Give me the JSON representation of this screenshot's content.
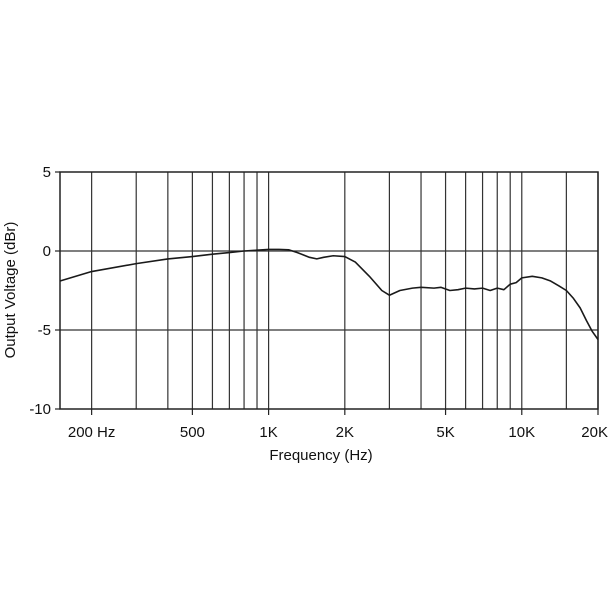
{
  "chart_data": {
    "type": "line",
    "xlabel": "Frequency (Hz)",
    "ylabel": "Output Voltage (dBr)",
    "x_scale": "log",
    "xlim": [
      150,
      20000
    ],
    "ylim": [
      -10,
      5
    ],
    "x_ticks": [
      {
        "value": 200,
        "label": "200 Hz"
      },
      {
        "value": 500,
        "label": "500"
      },
      {
        "value": 1000,
        "label": "1K"
      },
      {
        "value": 2000,
        "label": "2K"
      },
      {
        "value": 5000,
        "label": "5K"
      },
      {
        "value": 10000,
        "label": "10K"
      },
      {
        "value": 20000,
        "label": "20K"
      }
    ],
    "y_ticks": [
      {
        "value": 5,
        "label": "5"
      },
      {
        "value": 0,
        "label": "0"
      },
      {
        "value": -5,
        "label": "-5"
      },
      {
        "value": -10,
        "label": "-10"
      }
    ],
    "x_gridlines": [
      200,
      300,
      400,
      500,
      600,
      700,
      800,
      900,
      1000,
      2000,
      3000,
      4000,
      5000,
      6000,
      7000,
      8000,
      9000,
      10000,
      15000,
      20000
    ],
    "y_gridlines": [
      0,
      -5
    ],
    "grid": true,
    "colors": {
      "line": "#1a1a1a",
      "grid": "#333333",
      "frame": "#222222"
    },
    "series": [
      {
        "points": [
          [
            150,
            -1.9
          ],
          [
            200,
            -1.3
          ],
          [
            300,
            -0.8
          ],
          [
            400,
            -0.5
          ],
          [
            500,
            -0.35
          ],
          [
            600,
            -0.2
          ],
          [
            700,
            -0.1
          ],
          [
            800,
            0.0
          ],
          [
            900,
            0.05
          ],
          [
            1000,
            0.1
          ],
          [
            1100,
            0.1
          ],
          [
            1200,
            0.08
          ],
          [
            1300,
            -0.1
          ],
          [
            1450,
            -0.4
          ],
          [
            1550,
            -0.5
          ],
          [
            1650,
            -0.4
          ],
          [
            1800,
            -0.3
          ],
          [
            2000,
            -0.35
          ],
          [
            2200,
            -0.7
          ],
          [
            2500,
            -1.6
          ],
          [
            2800,
            -2.5
          ],
          [
            3000,
            -2.8
          ],
          [
            3300,
            -2.5
          ],
          [
            3700,
            -2.35
          ],
          [
            4000,
            -2.3
          ],
          [
            4500,
            -2.35
          ],
          [
            4800,
            -2.3
          ],
          [
            5200,
            -2.5
          ],
          [
            5600,
            -2.45
          ],
          [
            6000,
            -2.35
          ],
          [
            6500,
            -2.4
          ],
          [
            7000,
            -2.35
          ],
          [
            7500,
            -2.5
          ],
          [
            8000,
            -2.35
          ],
          [
            8500,
            -2.45
          ],
          [
            9000,
            -2.1
          ],
          [
            9500,
            -2.0
          ],
          [
            10000,
            -1.7
          ],
          [
            11000,
            -1.6
          ],
          [
            12000,
            -1.7
          ],
          [
            13000,
            -1.9
          ],
          [
            14000,
            -2.2
          ],
          [
            15000,
            -2.5
          ],
          [
            16000,
            -3.0
          ],
          [
            17000,
            -3.6
          ],
          [
            18000,
            -4.4
          ],
          [
            19000,
            -5.1
          ],
          [
            20000,
            -5.6
          ]
        ]
      }
    ]
  }
}
